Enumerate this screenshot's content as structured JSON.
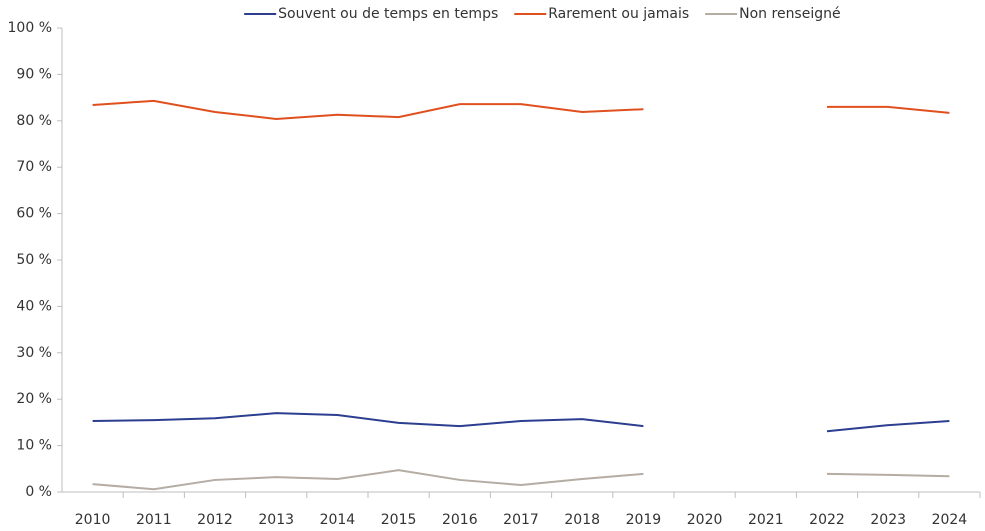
{
  "chart_data": {
    "type": "line",
    "categories": [
      "2010",
      "2011",
      "2012",
      "2013",
      "2014",
      "2015",
      "2016",
      "2017",
      "2018",
      "2019",
      "2020",
      "2021",
      "2022",
      "2023",
      "2024"
    ],
    "series": [
      {
        "name": "Souvent ou de temps en temps",
        "color": "#2c3e8f",
        "values": [
          15.3,
          15.5,
          15.9,
          17,
          16.6,
          14.9,
          14.2,
          15.3,
          15.7,
          14.2,
          null,
          null,
          13.1,
          14.4,
          15.3
        ]
      },
      {
        "name": "Rarement ou jamais",
        "color": "#e0501e",
        "values": [
          83.4,
          84.3,
          81.9,
          80.4,
          81.3,
          80.8,
          83.6,
          83.6,
          81.9,
          82.5,
          null,
          null,
          83,
          83,
          81.7
        ]
      },
      {
        "name": "Non renseigné",
        "color": "#b5aca3",
        "values": [
          1.7,
          0.6,
          2.6,
          3.2,
          2.8,
          4.7,
          2.6,
          1.5,
          2.8,
          3.9,
          null,
          null,
          3.9,
          3.7,
          3.4
        ]
      }
    ],
    "ylim": [
      0,
      100
    ],
    "yticks": [
      {
        "value": 0,
        "label": "0 %"
      },
      {
        "value": 10,
        "label": "10 %"
      },
      {
        "value": 20,
        "label": "20 %"
      },
      {
        "value": 30,
        "label": "30 %"
      },
      {
        "value": 40,
        "label": "40 %"
      },
      {
        "value": 50,
        "label": "50 %"
      },
      {
        "value": 60,
        "label": "60 %"
      },
      {
        "value": 70,
        "label": "70 %"
      },
      {
        "value": 80,
        "label": "80 %"
      },
      {
        "value": 90,
        "label": "90 %"
      },
      {
        "value": 100,
        "label": "100 %"
      }
    ],
    "grid": false,
    "legend": "top"
  }
}
